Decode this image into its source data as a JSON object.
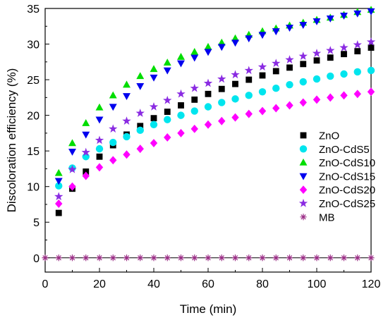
{
  "chart_data": {
    "type": "scatter",
    "title": "",
    "xlabel": "Time (min)",
    "ylabel": "Discoloration efficiency (%)",
    "xlim": [
      0,
      120
    ],
    "ylim": [
      -2,
      35
    ],
    "xticks": [
      0,
      20,
      40,
      60,
      80,
      100,
      120
    ],
    "yticks": [
      0,
      5,
      10,
      15,
      20,
      25,
      30,
      35
    ],
    "grid": false,
    "legend_position": "right",
    "x": [
      5,
      10,
      15,
      20,
      25,
      30,
      35,
      40,
      45,
      50,
      55,
      60,
      65,
      70,
      75,
      80,
      85,
      90,
      95,
      100,
      105,
      110,
      115,
      120
    ],
    "series": [
      {
        "name": "ZnO",
        "marker": "square",
        "color": "#000000",
        "values": [
          6.3,
          9.7,
          12.1,
          14.2,
          15.8,
          17.3,
          18.5,
          19.6,
          20.5,
          21.4,
          22.2,
          23.0,
          23.7,
          24.4,
          25.0,
          25.6,
          26.2,
          26.7,
          27.2,
          27.7,
          28.1,
          28.6,
          29.0,
          29.5
        ]
      },
      {
        "name": "ZnO-CdS5",
        "marker": "circle",
        "color": "#00e5ee",
        "values": [
          10.1,
          12.6,
          14.2,
          15.3,
          16.2,
          17.0,
          17.9,
          18.7,
          19.4,
          20.0,
          20.6,
          21.2,
          21.8,
          22.3,
          22.8,
          23.3,
          23.8,
          24.3,
          24.7,
          25.1,
          25.5,
          25.8,
          26.1,
          26.3
        ]
      },
      {
        "name": "ZnO-CdS10",
        "marker": "triangle-up",
        "color": "#00dd00",
        "values": [
          11.9,
          16.1,
          18.9,
          21.1,
          22.8,
          24.3,
          25.5,
          26.5,
          27.4,
          28.2,
          28.9,
          29.6,
          30.2,
          30.8,
          31.3,
          31.8,
          32.2,
          32.6,
          33.0,
          33.4,
          33.7,
          34.1,
          34.5,
          34.8
        ]
      },
      {
        "name": "ZnO-CdS15",
        "marker": "triangle-down",
        "color": "#0000ee",
        "values": [
          10.8,
          14.9,
          17.3,
          19.4,
          21.2,
          22.7,
          24.1,
          25.3,
          26.3,
          27.3,
          28.1,
          28.9,
          29.6,
          30.2,
          30.8,
          31.3,
          31.8,
          32.3,
          32.7,
          33.2,
          33.6,
          34.0,
          34.3,
          34.6
        ]
      },
      {
        "name": "ZnO-CdS20",
        "marker": "diamond",
        "color": "#ff00ff",
        "values": [
          7.6,
          10.0,
          11.5,
          12.7,
          13.7,
          14.5,
          15.3,
          16.1,
          16.9,
          17.5,
          18.1,
          18.7,
          19.2,
          19.7,
          20.2,
          20.6,
          21.0,
          21.4,
          21.8,
          22.2,
          22.5,
          22.8,
          23.0,
          23.3
        ]
      },
      {
        "name": "ZnO-CdS25",
        "marker": "star",
        "color": "#8a2be2",
        "values": [
          8.6,
          12.4,
          14.8,
          16.5,
          18.1,
          19.2,
          20.3,
          21.2,
          22.1,
          23.0,
          23.8,
          24.5,
          25.1,
          25.7,
          26.3,
          26.8,
          27.3,
          27.8,
          28.3,
          28.7,
          29.1,
          29.5,
          29.9,
          30.3
        ]
      },
      {
        "name": "MB",
        "marker": "asterisk",
        "color": "#9b2d86",
        "x": [
          0,
          5,
          10,
          15,
          20,
          25,
          30,
          35,
          40,
          45,
          50,
          55,
          60,
          65,
          70,
          75,
          80,
          85,
          90,
          95,
          100,
          105,
          110,
          115,
          120
        ],
        "values": [
          0,
          0,
          0,
          0,
          0,
          0,
          0,
          0,
          0,
          0,
          0,
          0,
          0,
          0,
          0,
          0,
          0,
          0,
          0,
          0,
          0,
          0,
          0,
          0,
          0
        ]
      }
    ]
  }
}
